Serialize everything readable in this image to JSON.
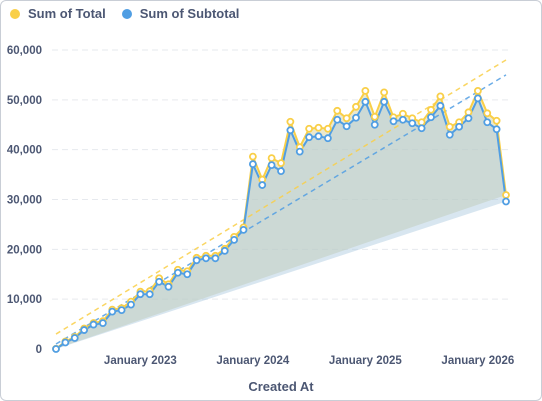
{
  "legend": [
    {
      "label": "Sum of Total",
      "color": "#f9cf48"
    },
    {
      "label": "Sum of Subtotal",
      "color": "#509ee3"
    }
  ],
  "chart_data": {
    "type": "area",
    "title": "",
    "xlabel": "Created At",
    "ylabel": "",
    "ylim": [
      0,
      60000
    ],
    "yticks": [
      0,
      10000,
      20000,
      30000,
      40000,
      50000,
      60000
    ],
    "ytick_labels": [
      "0",
      "10,000",
      "20,000",
      "30,000",
      "40,000",
      "50,000",
      "60,000"
    ],
    "xticks": [
      "2023-01",
      "2024-01",
      "2025-01",
      "2026-01"
    ],
    "xtick_labels": [
      "January 2023",
      "January 2024",
      "January 2025",
      "January 2026"
    ],
    "x": [
      "2022-04",
      "2022-05",
      "2022-06",
      "2022-07",
      "2022-08",
      "2022-09",
      "2022-10",
      "2022-11",
      "2022-12",
      "2023-01",
      "2023-02",
      "2023-03",
      "2023-04",
      "2023-05",
      "2023-06",
      "2023-07",
      "2023-08",
      "2023-09",
      "2023-10",
      "2023-11",
      "2023-12",
      "2024-01",
      "2024-02",
      "2024-03",
      "2024-04",
      "2024-05",
      "2024-06",
      "2024-07",
      "2024-08",
      "2024-09",
      "2024-10",
      "2024-11",
      "2024-12",
      "2025-01",
      "2025-02",
      "2025-03",
      "2025-04",
      "2025-05",
      "2025-06",
      "2025-07",
      "2025-08",
      "2025-09",
      "2025-10",
      "2025-11",
      "2025-12",
      "2026-01",
      "2026-02",
      "2026-03",
      "2026-04"
    ],
    "grid": true,
    "legend_position": "top-left",
    "series": [
      {
        "name": "Sum of Total",
        "color": "#f9cf48",
        "values": [
          50,
          1500,
          2400,
          4100,
          5200,
          5600,
          7900,
          8200,
          9500,
          11500,
          11600,
          14200,
          13000,
          15900,
          15600,
          18300,
          18700,
          18700,
          20100,
          22500,
          24400,
          38600,
          34000,
          38300,
          37300,
          45600,
          40500,
          44200,
          44400,
          44200,
          47800,
          46300,
          48600,
          51800,
          46600,
          51500,
          46500,
          47200,
          46300,
          45500,
          48000,
          50700,
          44600,
          45500,
          47500,
          51800,
          47300,
          45800,
          30900
        ],
        "trend": [
          3000,
          58000
        ]
      },
      {
        "name": "Sum of Subtotal",
        "color": "#509ee3",
        "values": [
          0,
          1300,
          2200,
          3800,
          4900,
          5200,
          7500,
          7800,
          8900,
          11000,
          11000,
          13500,
          12500,
          15300,
          15000,
          17800,
          18200,
          18200,
          19700,
          21900,
          23900,
          37100,
          32900,
          36900,
          35700,
          43900,
          39600,
          42500,
          42700,
          42300,
          46000,
          44700,
          46400,
          49600,
          45000,
          49600,
          45700,
          46000,
          45300,
          44300,
          46500,
          48800,
          43000,
          44600,
          46300,
          50300,
          45500,
          44100,
          29600
        ],
        "trend": [
          1000,
          55000
        ]
      }
    ]
  }
}
